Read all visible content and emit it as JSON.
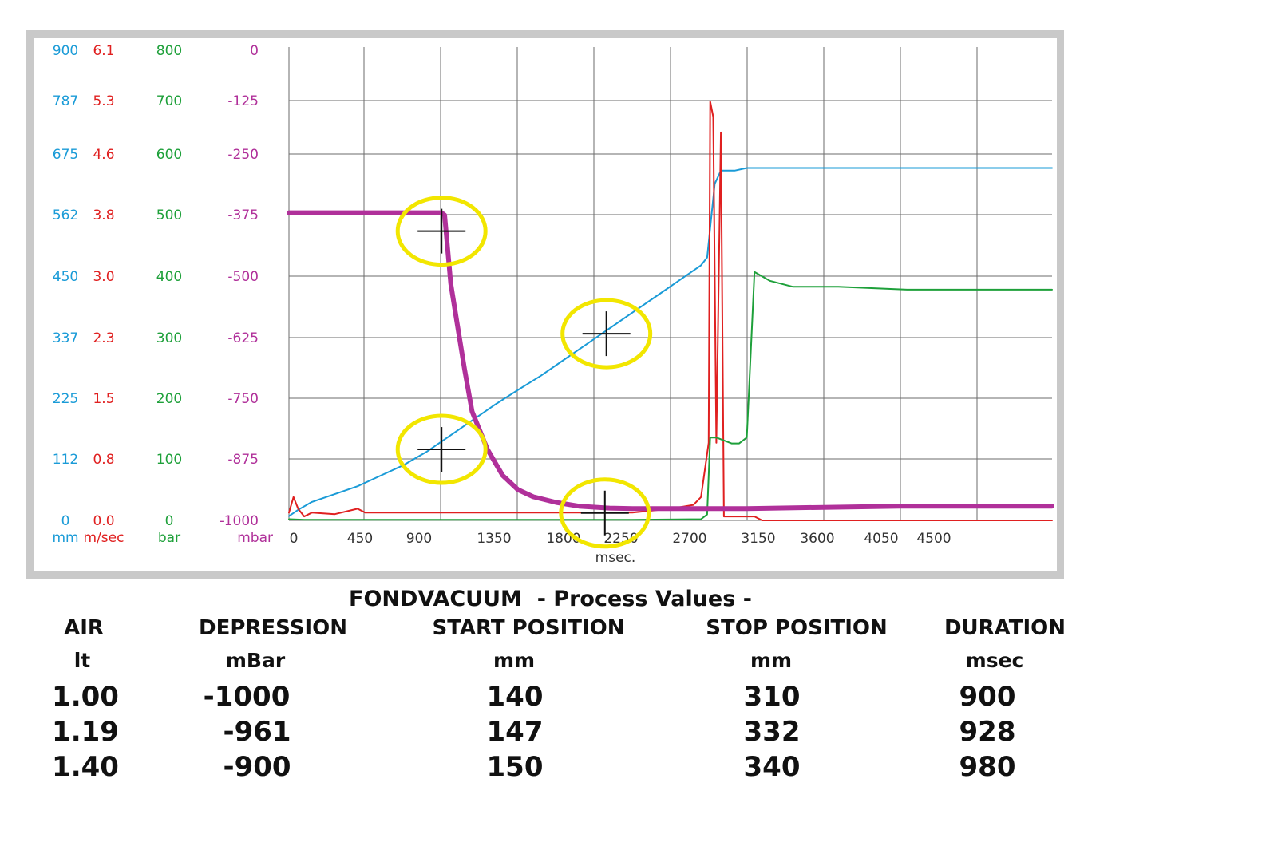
{
  "chart_data": {
    "type": "line",
    "xlabel": "msec.",
    "x_ticks": [
      "0",
      "450",
      "900",
      "1350",
      "1800",
      "2250",
      "2700",
      "3150",
      "3600",
      "4050",
      "4500"
    ],
    "xlim": [
      0,
      5000
    ],
    "y_axes": [
      {
        "unit": "mm",
        "color": "#1a9bd7",
        "ticks": [
          "900",
          "787",
          "675",
          "562",
          "450",
          "337",
          "225",
          "112",
          "0"
        ],
        "range": [
          0,
          900
        ]
      },
      {
        "unit": "m/sec",
        "color": "#e02020",
        "ticks": [
          "6.1",
          "5.3",
          "4.6",
          "3.8",
          "3.0",
          "2.3",
          "1.5",
          "0.8",
          "0.0"
        ],
        "range": [
          0,
          6.1
        ]
      },
      {
        "unit": "bar",
        "color": "#1ea03a",
        "ticks": [
          "800",
          "700",
          "600",
          "500",
          "400",
          "300",
          "200",
          "100",
          "0"
        ],
        "range": [
          0,
          800
        ]
      },
      {
        "unit": "mbar",
        "color": "#b0309a",
        "ticks": [
          "0",
          "-125",
          "-250",
          "-375",
          "-500",
          "-625",
          "-750",
          "-875",
          "-1000"
        ],
        "range": [
          -1000,
          0
        ]
      }
    ],
    "series": [
      {
        "unit": "mm",
        "color": "#1a9bd7",
        "x": [
          0,
          60,
          150,
          300,
          450,
          600,
          750,
          900,
          1050,
          1200,
          1350,
          1500,
          1650,
          1800,
          1950,
          2100,
          2250,
          2400,
          2550,
          2700,
          2740,
          2790,
          2830,
          2920,
          3000,
          3300,
          3600,
          4050,
          4500,
          5000
        ],
        "y": [
          8,
          20,
          35,
          50,
          65,
          85,
          105,
          130,
          160,
          190,
          220,
          248,
          275,
          305,
          335,
          365,
          395,
          425,
          455,
          485,
          500,
          640,
          665,
          665,
          670,
          670,
          670,
          670,
          670,
          670
        ]
      },
      {
        "unit": "m/sec",
        "color": "#e02020",
        "x": [
          0,
          30,
          60,
          100,
          150,
          300,
          450,
          500,
          900,
          1350,
          1800,
          2250,
          2500,
          2650,
          2700,
          2750,
          2760,
          2780,
          2800,
          2830,
          2850,
          2870,
          2900,
          3000,
          3050,
          3100,
          3600,
          5000
        ],
        "y": [
          0.1,
          0.3,
          0.15,
          0.05,
          0.1,
          0.08,
          0.15,
          0.1,
          0.1,
          0.1,
          0.1,
          0.1,
          0.15,
          0.2,
          0.3,
          1.0,
          5.4,
          5.2,
          1.0,
          5.0,
          0.05,
          0.05,
          0.05,
          0.05,
          0.05,
          0.0,
          0.0,
          0.0
        ]
      },
      {
        "unit": "bar",
        "color": "#1ea03a",
        "x": [
          0,
          100,
          500,
          900,
          1350,
          1800,
          2250,
          2700,
          2740,
          2760,
          2800,
          2900,
          2950,
          3000,
          3050,
          3150,
          3300,
          3600,
          4050,
          4500,
          5000
        ],
        "y": [
          2,
          1,
          1,
          1,
          1,
          1,
          1,
          2,
          10,
          140,
          140,
          130,
          130,
          140,
          420,
          405,
          395,
          395,
          390,
          390,
          390
        ]
      },
      {
        "unit": "mbar",
        "color": "#b0309a",
        "x": [
          0,
          300,
          600,
          900,
          1000,
          1020,
          1060,
          1100,
          1150,
          1200,
          1300,
          1400,
          1500,
          1600,
          1750,
          1900,
          2100,
          2250,
          2500,
          3000,
          4000,
          5000
        ],
        "y": [
          -350,
          -350,
          -350,
          -350,
          -350,
          -355,
          -500,
          -580,
          -680,
          -770,
          -850,
          -905,
          -935,
          -950,
          -962,
          -970,
          -974,
          -975,
          -975,
          -975,
          -970,
          -970
        ]
      }
    ],
    "markers": [
      {
        "x": 1000,
        "y_mm": 550
      },
      {
        "x": 1000,
        "y_mm": 135
      },
      {
        "x": 2080,
        "y_mm": 355
      },
      {
        "x": 2070,
        "y_mm": 14
      }
    ],
    "grid": true,
    "legend": "none"
  },
  "title": "FONDVACUUM  - Process Values -",
  "table": {
    "headers": [
      "AIR",
      "DEPRESSION",
      "START POSITION",
      "STOP POSITION",
      "DURATION"
    ],
    "units": [
      "lt",
      "mBar",
      "mm",
      "mm",
      "msec"
    ],
    "rows": [
      [
        "1.00",
        "-1000",
        "140",
        "310",
        "900"
      ],
      [
        "1.19",
        "-961",
        "147",
        "332",
        "928"
      ],
      [
        "1.40",
        "-900",
        "150",
        "340",
        "980"
      ]
    ]
  }
}
